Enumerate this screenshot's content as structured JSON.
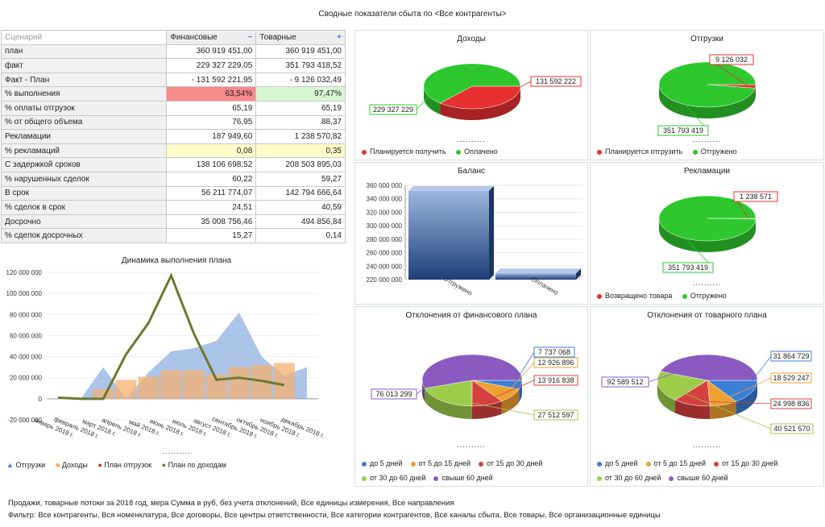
{
  "title": "Сводные показатели сбыта по <Все контрагенты>",
  "table": {
    "header": {
      "scenario": "Сценарий",
      "fin": "Финансовые",
      "fin_icon": "−",
      "goods": "Товарные",
      "goods_icon": "+"
    },
    "rows": [
      {
        "label": "план",
        "fin": "360 919 451,00",
        "goods": "360 919 451,00"
      },
      {
        "label": "факт",
        "fin": "229 327 229,05",
        "goods": "351 793 418,52"
      },
      {
        "label": "Факт - План",
        "fin": "- 131 592 221,95",
        "goods": "- 9 126 032,49"
      },
      {
        "label": "% выполнения",
        "fin": "63,54%",
        "goods": "97,47%"
      },
      {
        "label": "% оплаты отгрузок",
        "fin": "65,19",
        "goods": "65,19"
      },
      {
        "label": "% от общего объема",
        "fin": "76,95",
        "goods": "88,37"
      },
      {
        "label": "Рекламации",
        "fin": "187 949,60",
        "goods": "1 238 570,82"
      },
      {
        "label": "% рекламаций",
        "fin": "0,08",
        "goods": "0,35"
      },
      {
        "label": "С задержкой сроков",
        "fin": "138 106 698,52",
        "goods": "208 503 895,03"
      },
      {
        "label": "% нарушенных сделок",
        "fin": "60,22",
        "goods": "59,27"
      },
      {
        "label": "В срок",
        "fin": "56 211 774,07",
        "goods": "142 794 666,64"
      },
      {
        "label": "% сделок в срок",
        "fin": "24,51",
        "goods": "40,59"
      },
      {
        "label": "Досрочно",
        "fin": "35 008 756,46",
        "goods": "494 856,84"
      },
      {
        "label": "% сделок досрочных",
        "fin": "15,27",
        "goods": "0,14"
      }
    ]
  },
  "colors": {
    "red": "#e83030",
    "green": "#2ec82e",
    "blue": "#3a7fd5",
    "orange": "#f0a030",
    "darkred": "#d64040",
    "lightgreen": "#9ccc4a",
    "purple": "#8a5ac0",
    "area": "#8fb0e0",
    "bar": "#f5b070",
    "plan": "#6b7a30"
  },
  "dots": "..........",
  "chart_data": [
    {
      "id": "income",
      "type": "pie",
      "title": "Доходы",
      "labels": [
        "Планируется получить",
        "Оплачено"
      ],
      "values": [
        131592222,
        229327229
      ],
      "value_labels": [
        "131 592 222",
        "229 327 229"
      ]
    },
    {
      "id": "shipments",
      "type": "pie",
      "title": "Отгрузки",
      "labels": [
        "Планируется отгрузить",
        "Отгружено"
      ],
      "values": [
        9126032,
        351793419
      ],
      "value_labels": [
        "9 126 032",
        "351 793 419"
      ]
    },
    {
      "id": "balance",
      "type": "bar",
      "title": "Баланс",
      "categories": [
        "Отгружено",
        "Оплачено"
      ],
      "values": [
        351793419,
        229327229
      ],
      "ylim": [
        220000000,
        360000000
      ],
      "yticks": [
        360000000,
        340000000,
        320000000,
        300000000,
        280000000,
        260000000,
        240000000,
        220000000
      ],
      "ytick_labels": [
        "360 000 000",
        "340 000 000",
        "320 000 000",
        "300 000 000",
        "280 000 000",
        "260 000 000",
        "240 000 000",
        "220 000 000"
      ]
    },
    {
      "id": "reclamations",
      "type": "pie",
      "title": "Рекламации",
      "labels": [
        "Возвращено товара",
        "Отгружено"
      ],
      "values": [
        1238571,
        351793419
      ],
      "value_labels": [
        "1 238 571",
        "351 793 419"
      ]
    },
    {
      "id": "fin_dev",
      "type": "pie",
      "title": "Отклонения от финансового плана",
      "labels": [
        "до 5 дней",
        "от 5 до 15 дней",
        "от 15 до 30 дней",
        "от 30 до 60 дней",
        "свыше 60 дней"
      ],
      "values": [
        7737068,
        12926896,
        13916838,
        27512597,
        76013299
      ],
      "value_labels": [
        "7 737 068",
        "12 926 896",
        "13 916 838",
        "27 512 597",
        "76 013 299"
      ]
    },
    {
      "id": "goods_dev",
      "type": "pie",
      "title": "Отклонения от товарного плана",
      "labels": [
        "до 5 дней",
        "от 5 до 15 дней",
        "от 15 до 30 дней",
        "от 30 до 60 дней",
        "свыше 60 дней"
      ],
      "values": [
        31864729,
        18529247,
        24998836,
        40521570,
        92589512
      ],
      "value_labels": [
        "31 864 729",
        "18 529 247",
        "24 998 836",
        "40 521 570",
        "92 589 512"
      ]
    },
    {
      "id": "dynamics",
      "type": "line",
      "title": "Динамика выполнения плана",
      "categories": [
        "январь 2018 г.",
        "февраль 2018 г.",
        "март 2018 г.",
        "апрель 2018 г.",
        "май 2018 г.",
        "июнь 2018 г.",
        "июль 2018 г.",
        "август 2018 г.",
        "сентябрь 2018 г.",
        "октябрь 2018 г.",
        "ноябрь 2018 г.",
        "декабрь 2018 г."
      ],
      "series": [
        {
          "name": "Отгрузки",
          "kind": "area",
          "values": [
            0,
            0,
            30000000,
            0,
            25000000,
            45000000,
            48000000,
            55000000,
            82000000,
            40000000,
            22000000,
            30000000
          ]
        },
        {
          "name": "Доходы",
          "kind": "bar",
          "values": [
            0,
            0,
            9000000,
            18000000,
            21000000,
            27000000,
            27000000,
            23000000,
            30000000,
            32000000,
            34000000,
            0
          ]
        },
        {
          "name": "План отгрузок",
          "kind": "line",
          "values": [
            1000000,
            0,
            0,
            42000000,
            72000000,
            117000000,
            62000000,
            18000000,
            20000000,
            17000000,
            13000000,
            0
          ]
        },
        {
          "name": "План по доходам",
          "kind": "line",
          "values": [
            1000000,
            0,
            0,
            42000000,
            72000000,
            117000000,
            62000000,
            18000000,
            20000000,
            17000000,
            13000000,
            0
          ]
        }
      ],
      "ylim": [
        -20000000,
        120000000
      ],
      "yticks": [
        120000000,
        100000000,
        80000000,
        60000000,
        40000000,
        20000000,
        0,
        -20000000
      ],
      "ytick_labels": [
        "120 000 000",
        "100 000 000",
        "80 000 000",
        "60 000 000",
        "40 000 000",
        "20 000 000",
        "0",
        "-20 000 000"
      ]
    }
  ],
  "legend_icons": {
    "triangle": "▲",
    "square": "■",
    "dot": "●"
  },
  "footer": {
    "line1": "Продажи, товарные потоки за 2018 год, мера Сумма в руб, без учета отклонений, Все единицы измерения, Все направления",
    "line2": "Фильтр: Все контрагенты, Вся номенклатура, Все договоры, Все центры ответственности, Все категории контрагентов, Все каналы сбыта, Все товары, Все организационные единицы"
  }
}
